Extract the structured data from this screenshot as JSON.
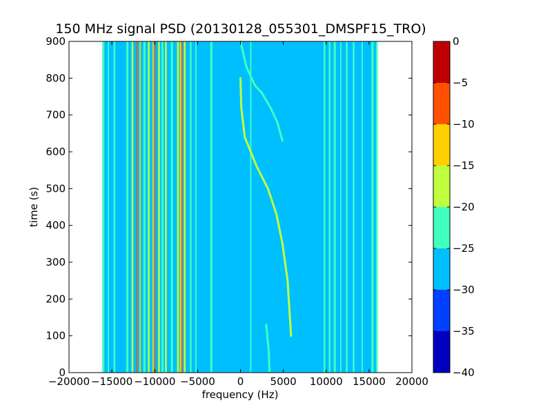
{
  "chart_data": {
    "type": "heatmap",
    "title": "150 MHz signal PSD (20130128_055301_DMSPF15_TRO)",
    "xlabel": "frequency (Hz)",
    "ylabel": "time (s)",
    "xlim": [
      -20000,
      20000
    ],
    "ylim": [
      0,
      900
    ],
    "x_ticks": [
      "−20000",
      "−15000",
      "−10000",
      "−5000",
      "0",
      "5000",
      "10000",
      "15000",
      "20000"
    ],
    "y_ticks": [
      "0",
      "100",
      "200",
      "300",
      "400",
      "500",
      "600",
      "700",
      "800",
      "900"
    ],
    "data_extent_x": [
      -16000,
      16000
    ],
    "colorbar": {
      "min": -40,
      "max": 0,
      "ticks": [
        "0",
        "−5",
        "−10",
        "−15",
        "−20",
        "−25",
        "−30",
        "−35",
        "−40"
      ],
      "levels": [
        {
          "from": -40,
          "to": -35,
          "color": "#0000bf"
        },
        {
          "from": -35,
          "to": -30,
          "color": "#0040ff"
        },
        {
          "from": -30,
          "to": -25,
          "color": "#00bfff"
        },
        {
          "from": -25,
          "to": -20,
          "color": "#40ffbf"
        },
        {
          "from": -20,
          "to": -15,
          "color": "#bfff40"
        },
        {
          "from": -15,
          "to": -10,
          "color": "#ffd000"
        },
        {
          "from": -10,
          "to": -5,
          "color": "#ff5000"
        },
        {
          "from": -5,
          "to": 0,
          "color": "#bf0000"
        }
      ]
    },
    "background_level": -27,
    "vertical_lines": [
      {
        "freq": -16000,
        "width": 250,
        "level": -22
      },
      {
        "freq": -15400,
        "width": 150,
        "level": -22
      },
      {
        "freq": -14700,
        "width": 200,
        "level": -22
      },
      {
        "freq": -13200,
        "width": 250,
        "level": -22
      },
      {
        "freq": -12600,
        "width": 200,
        "level": -18
      },
      {
        "freq": -12100,
        "width": 120,
        "level": -8
      },
      {
        "freq": -11700,
        "width": 150,
        "level": -14
      },
      {
        "freq": -11200,
        "width": 250,
        "level": -22
      },
      {
        "freq": -10700,
        "width": 200,
        "level": -18
      },
      {
        "freq": -10200,
        "width": 150,
        "level": -14
      },
      {
        "freq": -9900,
        "width": 120,
        "level": -8
      },
      {
        "freq": -9500,
        "width": 200,
        "level": -18
      },
      {
        "freq": -9100,
        "width": 250,
        "level": -22
      },
      {
        "freq": -8700,
        "width": 200,
        "level": -18
      },
      {
        "freq": -8000,
        "width": 250,
        "level": -22
      },
      {
        "freq": -7300,
        "width": 200,
        "level": -18
      },
      {
        "freq": -7000,
        "width": 180,
        "level": -12
      },
      {
        "freq": -6800,
        "width": 100,
        "level": -8
      },
      {
        "freq": -6500,
        "width": 200,
        "level": -18
      },
      {
        "freq": -5800,
        "width": 200,
        "level": -22
      },
      {
        "freq": -5200,
        "width": 150,
        "level": -22
      },
      {
        "freq": -3400,
        "width": 250,
        "level": -22
      },
      {
        "freq": 1200,
        "width": 150,
        "level": -22
      },
      {
        "freq": 9800,
        "width": 200,
        "level": -22
      },
      {
        "freq": 10400,
        "width": 200,
        "level": -22
      },
      {
        "freq": 11000,
        "width": 250,
        "level": -22
      },
      {
        "freq": 11700,
        "width": 150,
        "level": -22
      },
      {
        "freq": 12400,
        "width": 200,
        "level": -22
      },
      {
        "freq": 13200,
        "width": 200,
        "level": -22
      },
      {
        "freq": 14200,
        "width": 150,
        "level": -22
      },
      {
        "freq": 15400,
        "width": 250,
        "level": -22
      },
      {
        "freq": 15900,
        "width": 200,
        "level": -22
      }
    ],
    "traces": [
      {
        "name": "",
        "level": -18,
        "points": [
          [
            5900,
            100
          ],
          [
            5500,
            250
          ],
          [
            4900,
            350
          ],
          [
            4200,
            430
          ],
          [
            3200,
            500
          ],
          [
            1900,
            560
          ],
          [
            500,
            640
          ],
          [
            100,
            720
          ],
          [
            0,
            800
          ]
        ]
      },
      {
        "name": "",
        "level": -22,
        "points": [
          [
            0,
            900
          ],
          [
            700,
            830
          ],
          [
            1700,
            780
          ],
          [
            2500,
            760
          ],
          [
            3500,
            720
          ],
          [
            4300,
            680
          ],
          [
            4900,
            630
          ]
        ]
      },
      {
        "name": "",
        "level": -22,
        "points": [
          [
            3000,
            130
          ],
          [
            3300,
            60
          ],
          [
            3400,
            0
          ]
        ]
      }
    ]
  }
}
